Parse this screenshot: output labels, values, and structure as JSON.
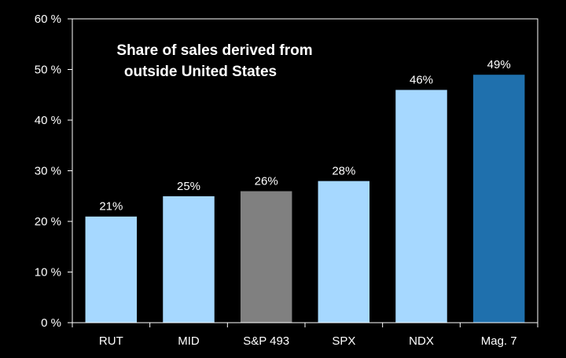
{
  "chart_data": {
    "type": "bar",
    "title_lines": [
      "Share of sales derived from",
      "outside United States"
    ],
    "categories": [
      "RUT",
      "MID",
      "S&P 493",
      "SPX",
      "NDX",
      "Mag. 7"
    ],
    "values": [
      21,
      25,
      26,
      28,
      46,
      49
    ],
    "data_labels": [
      "21%",
      "25%",
      "26%",
      "28%",
      "46%",
      "49%"
    ],
    "bar_colors": [
      "#a6d8ff",
      "#a6d8ff",
      "#808080",
      "#a6d8ff",
      "#a6d8ff",
      "#1f70ad"
    ],
    "ylim": [
      0,
      60
    ],
    "yticks": [
      0,
      10,
      20,
      30,
      40,
      50,
      60
    ],
    "ytick_labels": [
      "0 %",
      "10 %",
      "20 %",
      "30 %",
      "40 %",
      "50 %",
      "60 %"
    ],
    "xlabel": "",
    "ylabel": "",
    "grid": false,
    "background": "#000000",
    "axis_color": "#ffffff",
    "text_color": "#ffffff"
  }
}
